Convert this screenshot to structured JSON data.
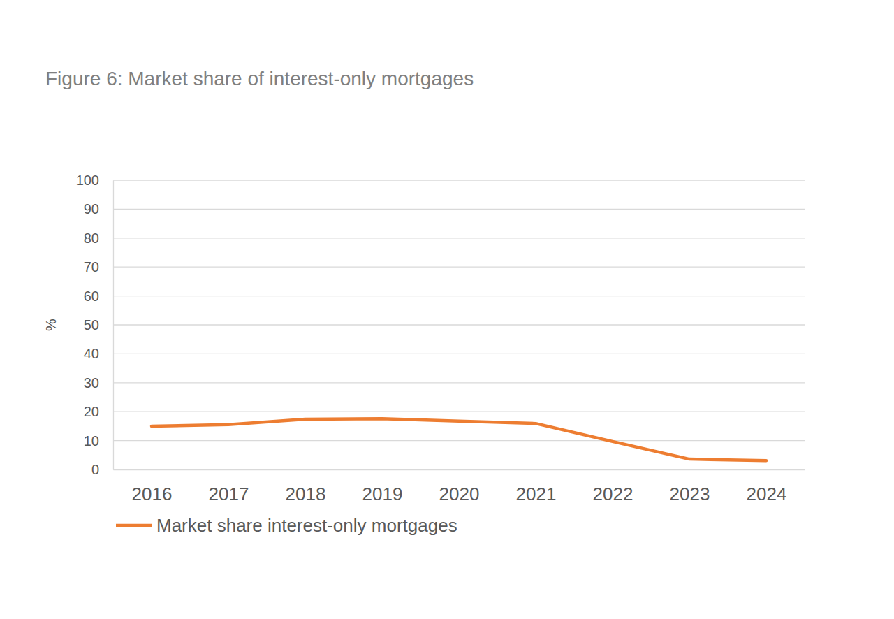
{
  "chart_data": {
    "type": "line",
    "title": "Figure 6: Market share of interest-only mortgages",
    "y_label": "%",
    "categories": [
      "2016",
      "2017",
      "2018",
      "2019",
      "2020",
      "2021",
      "2022",
      "2023",
      "2024"
    ],
    "series": [
      {
        "name": "Market share interest-only mortgages",
        "color": "#ED7D31",
        "values": [
          15.0,
          15.5,
          17.4,
          17.6,
          16.7,
          15.9,
          9.7,
          3.6,
          3.1
        ]
      }
    ],
    "ylim": [
      0,
      100
    ],
    "yticks": [
      0,
      10,
      20,
      30,
      40,
      50,
      60,
      70,
      80,
      90,
      100
    ],
    "grid": true,
    "legend": "bottom"
  }
}
